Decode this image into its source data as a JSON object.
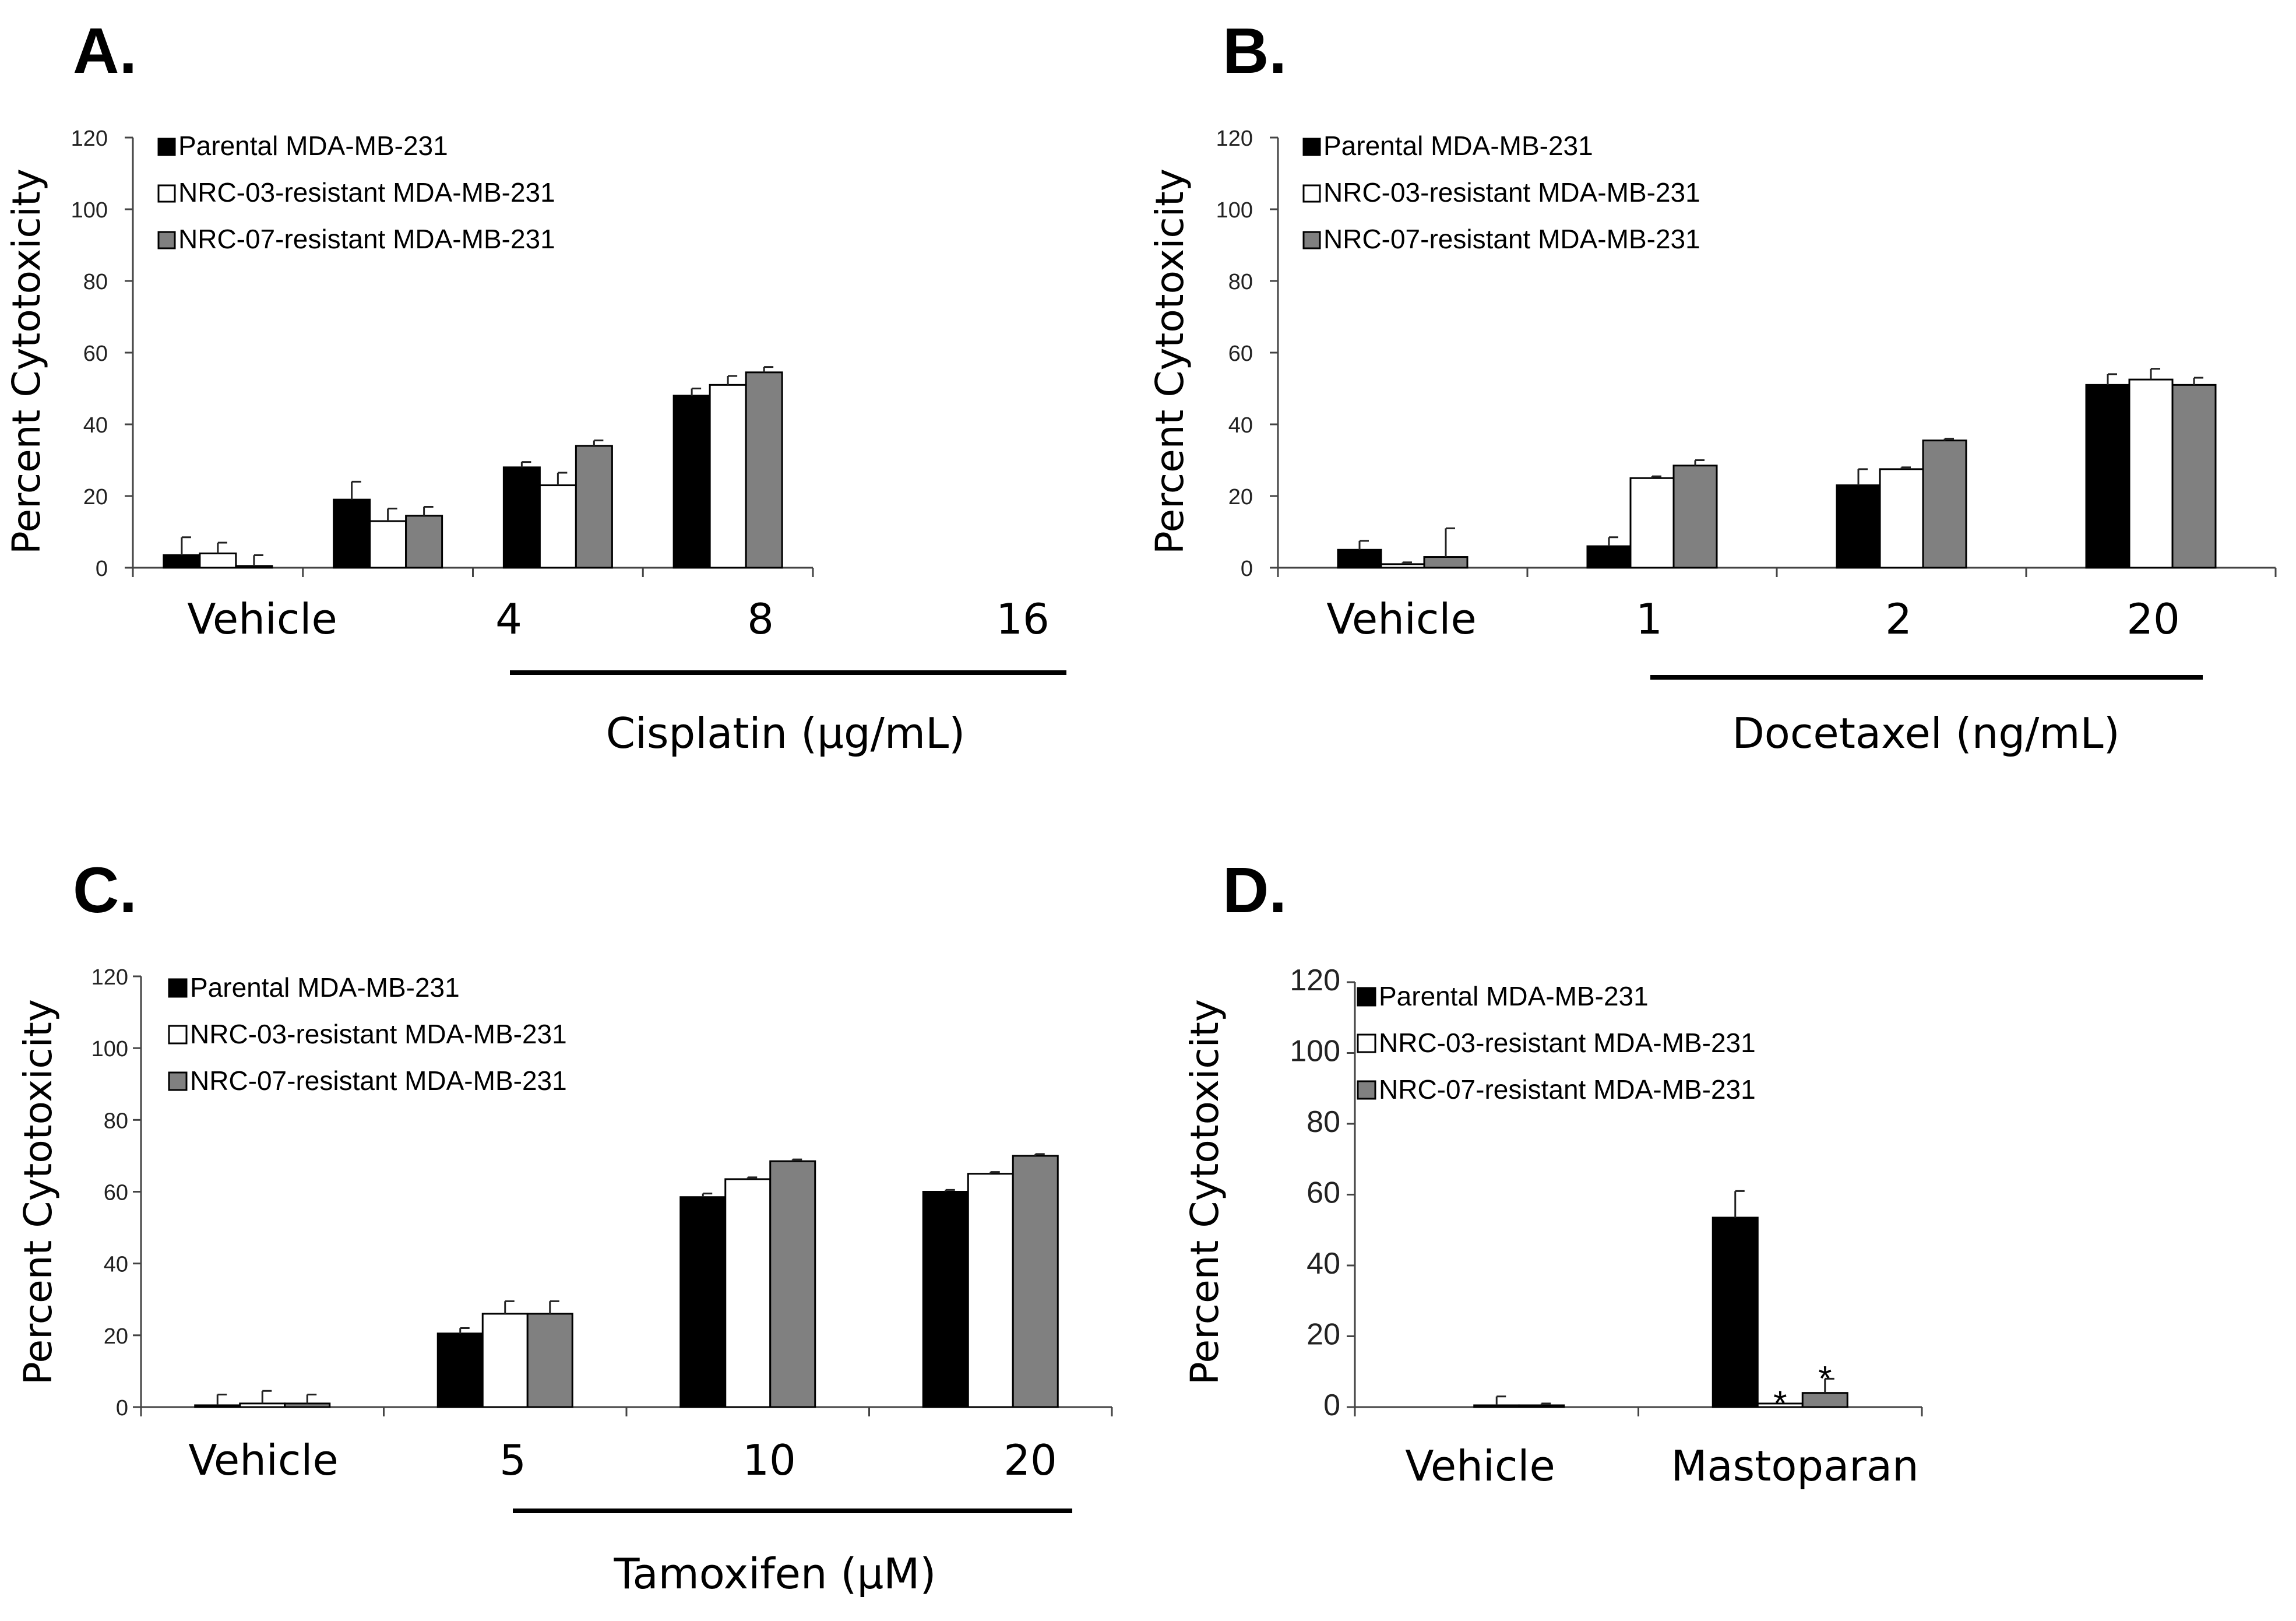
{
  "chart_data": [
    {
      "panel": "A.",
      "type": "bar",
      "ylabel": "Percent Cytotoxicity",
      "ylim": [
        0,
        120
      ],
      "yticks": [
        "0",
        "20",
        "40",
        "60",
        "80",
        "100",
        "120"
      ],
      "categories": [
        "Vehicle",
        "4",
        "8",
        "16"
      ],
      "drug_label": "Cisplatin (µg/mL)",
      "legend_position": "top-left",
      "series": [
        {
          "name": "Parental MDA-MB-231",
          "color": "#000000",
          "values": [
            3.5,
            19,
            28,
            48
          ],
          "errors": [
            5,
            5,
            1.5,
            2
          ]
        },
        {
          "name": "NRC-03-resistant MDA-MB-231",
          "color": "#ffffff",
          "values": [
            4,
            13,
            23,
            51
          ],
          "errors": [
            3,
            3.5,
            3.5,
            2.5
          ]
        },
        {
          "name": "NRC-07-resistant MDA-MB-231",
          "color": "#808080",
          "values": [
            0.5,
            14.5,
            34,
            54.5
          ],
          "errors": [
            3,
            2.5,
            1.5,
            1.5
          ]
        }
      ],
      "annotations": []
    },
    {
      "panel": "B.",
      "type": "bar",
      "ylabel": "Percent Cytotoxicity",
      "ylim": [
        0,
        120
      ],
      "yticks": [
        "0",
        "20",
        "40",
        "60",
        "80",
        "100",
        "120"
      ],
      "categories": [
        "Vehicle",
        "1",
        "2",
        "20"
      ],
      "drug_label": "Docetaxel (ng/mL)",
      "legend_position": "top-left",
      "series": [
        {
          "name": "Parental MDA-MB-231",
          "color": "#000000",
          "values": [
            5,
            6,
            23,
            51
          ],
          "errors": [
            2.5,
            2.5,
            4.5,
            3
          ]
        },
        {
          "name": "NRC-03-resistant MDA-MB-231",
          "color": "#ffffff",
          "values": [
            1,
            25,
            27.5,
            52.5
          ],
          "errors": [
            0.5,
            0.5,
            0.5,
            3
          ]
        },
        {
          "name": "NRC-07-resistant MDA-MB-231",
          "color": "#808080",
          "values": [
            3,
            28.5,
            35.5,
            51
          ],
          "errors": [
            8,
            1.5,
            0.5,
            2
          ]
        }
      ],
      "annotations": []
    },
    {
      "panel": "C.",
      "type": "bar",
      "ylabel": "Percent Cytotoxicity",
      "ylim": [
        0,
        120
      ],
      "yticks": [
        "0",
        "20",
        "40",
        "60",
        "80",
        "100",
        "120"
      ],
      "categories": [
        "Vehicle",
        "5",
        "10",
        "20"
      ],
      "drug_label": "Tamoxifen (µM)",
      "legend_position": "top-left",
      "series": [
        {
          "name": "Parental MDA-MB-231",
          "color": "#000000",
          "values": [
            0.5,
            20.5,
            58.5,
            60
          ],
          "errors": [
            3,
            1.5,
            1,
            0.5
          ]
        },
        {
          "name": "NRC-03-resistant MDA-MB-231",
          "color": "#ffffff",
          "values": [
            1,
            26,
            63.5,
            65
          ],
          "errors": [
            3.5,
            3.5,
            0.5,
            0.5
          ]
        },
        {
          "name": "NRC-07-resistant MDA-MB-231",
          "color": "#808080",
          "values": [
            1,
            26,
            68.5,
            70
          ],
          "errors": [
            2.5,
            3.5,
            0.5,
            0.5
          ]
        }
      ],
      "annotations": []
    },
    {
      "panel": "D.",
      "type": "bar",
      "ylabel": "Percent Cytotoxicity",
      "ylim": [
        0,
        120
      ],
      "yticks": [
        "0",
        "20",
        "40",
        "60",
        "80",
        "100",
        "120"
      ],
      "categories": [
        "Vehicle",
        "Mastoparan"
      ],
      "drug_label": "",
      "legend_position": "top-left",
      "series": [
        {
          "name": "Parental MDA-MB-231",
          "color": "#000000",
          "values": [
            0,
            53.5
          ],
          "errors": [
            0,
            7.5
          ]
        },
        {
          "name": "NRC-03-resistant MDA-MB-231",
          "color": "#ffffff",
          "values": [
            0.5,
            1
          ],
          "errors": [
            2.5,
            0
          ]
        },
        {
          "name": "NRC-07-resistant MDA-MB-231",
          "color": "#808080",
          "values": [
            0.5,
            4
          ],
          "errors": [
            0.5,
            4
          ]
        }
      ],
      "annotations": [
        {
          "category": 1,
          "series": 1,
          "text": "*"
        },
        {
          "category": 1,
          "series": 2,
          "text": "*"
        }
      ]
    }
  ]
}
